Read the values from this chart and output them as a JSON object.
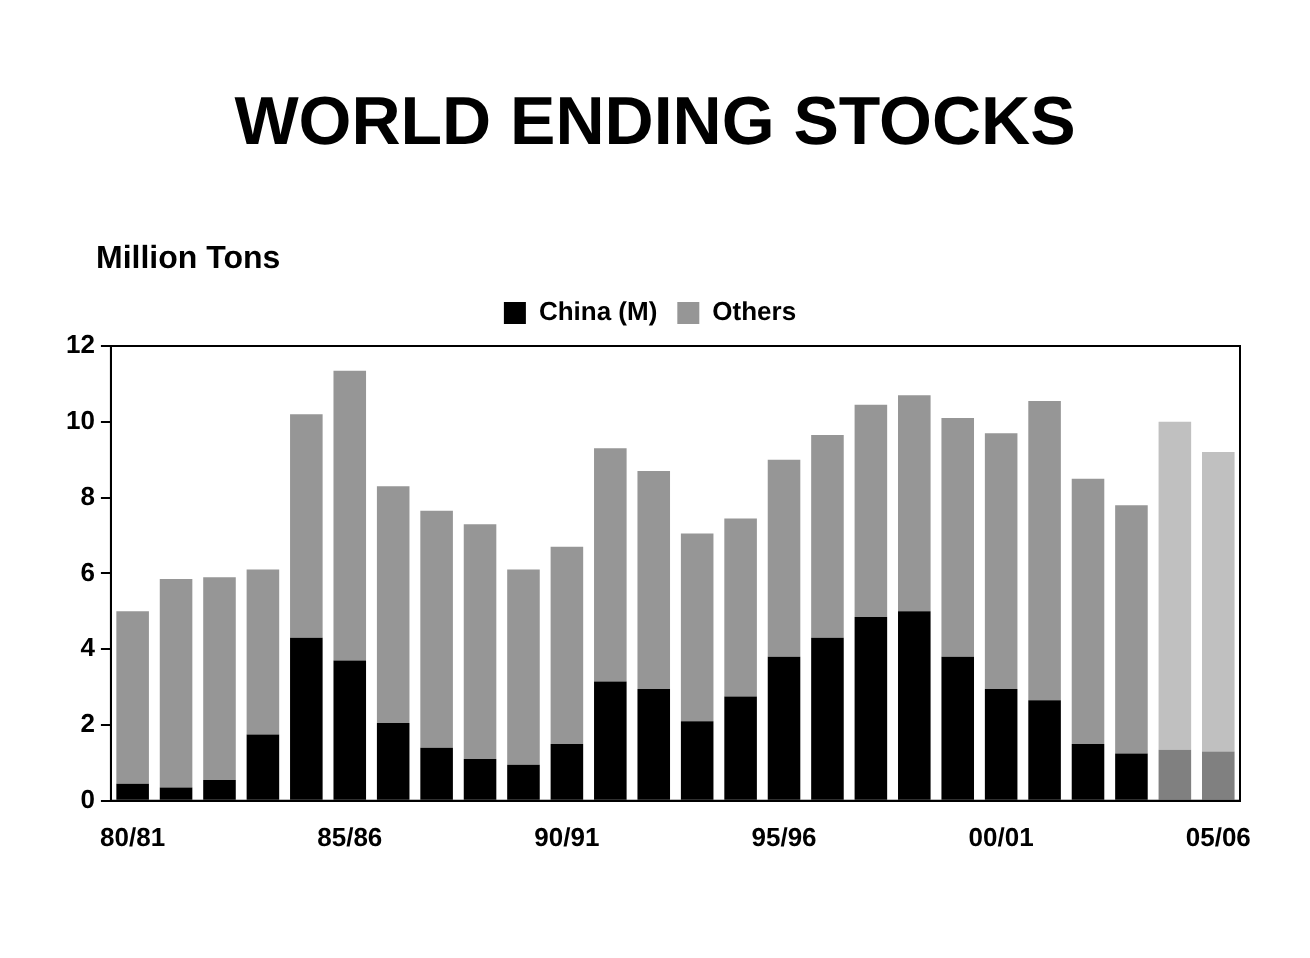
{
  "chart_data": {
    "type": "bar",
    "title": "WORLD ENDING STOCKS",
    "ylabel": "Million Tons",
    "categories": [
      "80/81",
      null,
      null,
      null,
      null,
      "85/86",
      null,
      null,
      null,
      null,
      "90/91",
      null,
      null,
      null,
      null,
      "95/96",
      null,
      null,
      null,
      null,
      "00/01",
      null,
      null,
      null,
      null,
      "05/06"
    ],
    "stacked": true,
    "series": [
      {
        "name": "China (M)",
        "color": "#000000",
        "colors": [
          "#000000",
          "#000000",
          "#000000",
          "#000000",
          "#000000",
          "#000000",
          "#000000",
          "#000000",
          "#000000",
          "#000000",
          "#000000",
          "#000000",
          "#000000",
          "#000000",
          "#000000",
          "#000000",
          "#000000",
          "#000000",
          "#000000",
          "#000000",
          "#000000",
          "#000000",
          "#000000",
          "#000000",
          "#808080",
          "#808080"
        ],
        "values": [
          0.45,
          0.35,
          0.55,
          1.75,
          4.3,
          3.7,
          2.05,
          1.4,
          1.1,
          0.95,
          1.5,
          3.15,
          2.95,
          2.1,
          2.75,
          3.8,
          4.3,
          4.85,
          5.0,
          3.8,
          2.95,
          2.65,
          1.5,
          1.25,
          1.35,
          1.3
        ]
      },
      {
        "name": "Others",
        "color": "#969696",
        "colors": [
          "#969696",
          "#969696",
          "#969696",
          "#969696",
          "#969696",
          "#969696",
          "#969696",
          "#969696",
          "#969696",
          "#969696",
          "#969696",
          "#969696",
          "#969696",
          "#969696",
          "#969696",
          "#969696",
          "#969696",
          "#969696",
          "#969696",
          "#969696",
          "#969696",
          "#969696",
          "#969696",
          "#969696",
          "#c0c0c0",
          "#c0c0c0"
        ],
        "values": [
          4.55,
          5.5,
          5.35,
          4.35,
          5.9,
          7.65,
          6.25,
          6.25,
          6.2,
          5.15,
          5.2,
          6.15,
          5.75,
          4.95,
          4.7,
          5.2,
          5.35,
          5.6,
          5.7,
          6.3,
          6.75,
          7.9,
          7.0,
          6.55,
          8.65,
          7.9
        ]
      }
    ],
    "ylim": [
      0,
      12
    ],
    "yticks": [
      0,
      2,
      4,
      6,
      8,
      10,
      12
    ],
    "grid": false,
    "legend": "top"
  }
}
